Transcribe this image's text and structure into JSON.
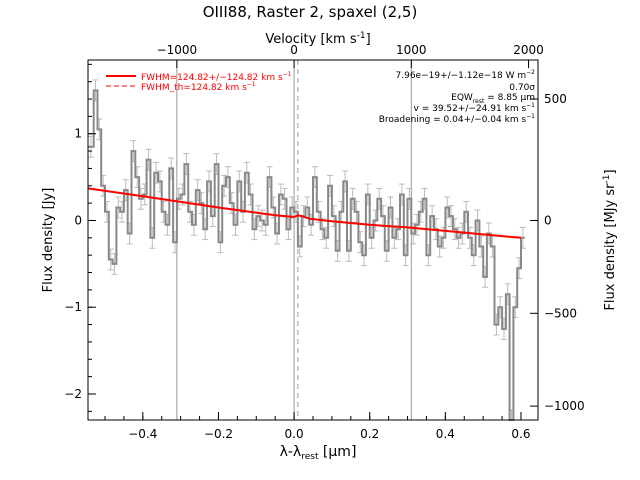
{
  "chart_data": {
    "type": "line",
    "title": "OIII88, Raster 2, spaxel (2,5)",
    "xlabel": "λ-λrest [μm]",
    "xlabel_parts": {
      "lambda": "λ-λ",
      "sub": "rest",
      "unit": " [μm]"
    },
    "x2label": "Velocity [km s⁻¹]",
    "x2label_parts": {
      "text": "Velocity [km s",
      "sup": "-1",
      "end": "]"
    },
    "ylabel": "Flux density [Jy]",
    "y2label": "Flux density [MJy sr⁻¹]",
    "y2label_parts": {
      "text": "Flux density [MJy sr",
      "sup": "-1",
      "end": "]"
    },
    "xlim": [
      -0.545,
      0.645
    ],
    "ylim": [
      -2.3,
      1.85
    ],
    "x_ticks": [
      -0.4,
      -0.2,
      0.0,
      0.2,
      0.4,
      0.6
    ],
    "x_tick_labels": [
      "−0.4",
      "−0.2",
      "0.0",
      "0.2",
      "0.4",
      "0.6"
    ],
    "y_ticks": [
      -2,
      -1,
      0,
      1
    ],
    "y_tick_labels": [
      "−2",
      "−1",
      "0",
      "1"
    ],
    "x2_ticks_um": [
      -0.31,
      0.0,
      0.31,
      0.62
    ],
    "x2_tick_labels": [
      "−1000",
      "0",
      "1000",
      "2000"
    ],
    "y2_ticks_jy": [
      1.4,
      0.0,
      -1.07,
      -2.14
    ],
    "y2_tick_labels": [
      "500",
      "0",
      "−500",
      "−1000"
    ],
    "vertical_lines": [
      -0.31,
      0.0,
      0.31
    ],
    "dashed_line": 0.01,
    "colors": {
      "data": "#888888",
      "errorbar": "#bbbbbb",
      "fit": "#ff0000",
      "guide": "#999999"
    },
    "legend_position": "top-left",
    "legend": [
      {
        "style": "solid",
        "text": "FWHM=124.82+/−124.82 km s",
        "sup": "−1"
      },
      {
        "style": "dashed",
        "text": "FWHM_th=124.82 km s",
        "sup": "−1"
      }
    ],
    "annotation_position": "top-right",
    "annotations": [
      {
        "text": "7.96e−19+/−1.12e−18 W m",
        "sup": "−2",
        "sub": ""
      },
      {
        "text": "0.70σ",
        "sup": "",
        "sub": ""
      },
      {
        "text": "EQW",
        "sub": "rest",
        "tail": " = 8.85 μm",
        "sup": ""
      },
      {
        "text": "v = 39.52+/−24.91 km s",
        "sup": "−1",
        "sub": ""
      },
      {
        "text": "Broadening = 0.04+/−0.04 km s",
        "sup": "−1",
        "sub": ""
      }
    ],
    "series": [
      {
        "name": "spectrum",
        "x": [
          -0.545,
          -0.53,
          -0.52,
          -0.51,
          -0.5,
          -0.49,
          -0.48,
          -0.47,
          -0.46,
          -0.45,
          -0.44,
          -0.43,
          -0.42,
          -0.41,
          -0.4,
          -0.39,
          -0.38,
          -0.37,
          -0.36,
          -0.35,
          -0.34,
          -0.33,
          -0.32,
          -0.31,
          -0.3,
          -0.29,
          -0.28,
          -0.27,
          -0.26,
          -0.25,
          -0.24,
          -0.23,
          -0.22,
          -0.21,
          -0.2,
          -0.19,
          -0.18,
          -0.17,
          -0.16,
          -0.15,
          -0.14,
          -0.13,
          -0.12,
          -0.11,
          -0.1,
          -0.09,
          -0.08,
          -0.07,
          -0.06,
          -0.05,
          -0.04,
          -0.03,
          -0.02,
          -0.01,
          0.0,
          0.01,
          0.02,
          0.03,
          0.04,
          0.05,
          0.06,
          0.07,
          0.08,
          0.09,
          0.1,
          0.11,
          0.12,
          0.13,
          0.14,
          0.15,
          0.16,
          0.17,
          0.18,
          0.19,
          0.2,
          0.21,
          0.22,
          0.23,
          0.24,
          0.25,
          0.26,
          0.27,
          0.28,
          0.29,
          0.3,
          0.31,
          0.32,
          0.33,
          0.34,
          0.35,
          0.36,
          0.37,
          0.38,
          0.39,
          0.4,
          0.41,
          0.42,
          0.43,
          0.44,
          0.45,
          0.46,
          0.47,
          0.48,
          0.49,
          0.5,
          0.51,
          0.52,
          0.53,
          0.54,
          0.55,
          0.56,
          0.57,
          0.58,
          0.59,
          0.6
        ],
        "y": [
          0.85,
          1.5,
          1.05,
          0.4,
          0.1,
          -0.45,
          -0.5,
          0.15,
          0.1,
          0.35,
          -0.15,
          0.8,
          0.5,
          0.25,
          0.3,
          0.7,
          -0.2,
          0.55,
          0.45,
          0.1,
          -0.05,
          0.6,
          -0.25,
          0.25,
          0.3,
          0.65,
          0.1,
          -0.05,
          0.35,
          0.2,
          -0.1,
          0.45,
          0.05,
          0.65,
          -0.25,
          0.4,
          0.5,
          0.2,
          -0.05,
          0.45,
          0.1,
          0.55,
          0.3,
          -0.1,
          0.05,
          0.0,
          -0.05,
          0.5,
          0.15,
          -0.15,
          0.3,
          0.25,
          -0.1,
          0.15,
          0.1,
          -0.3,
          0.05,
          0.15,
          -0.05,
          0.5,
          0.1,
          -0.1,
          -0.2,
          0.4,
          0.05,
          -0.35,
          0.1,
          0.45,
          -0.35,
          0.25,
          0.1,
          -0.25,
          -0.4,
          0.3,
          -0.2,
          0.0,
          0.25,
          0.05,
          -0.35,
          0.15,
          -0.2,
          -0.1,
          0.3,
          -0.4,
          0.25,
          -0.15,
          -0.05,
          0.1,
          0.25,
          -0.4,
          0.05,
          -0.1,
          -0.3,
          -0.2,
          0.15,
          0.05,
          -0.1,
          -0.2,
          -0.15,
          0.1,
          -0.2,
          -0.4,
          0.0,
          -0.3,
          -0.65,
          -0.15,
          -0.3,
          -1.2,
          -1.0,
          -1.25,
          -0.85,
          -2.3,
          -1.0,
          -0.55,
          -0.2
        ]
      },
      {
        "name": "fit",
        "x": [
          -0.545,
          -0.4,
          -0.2,
          -0.05,
          0.0,
          0.01,
          0.02,
          0.04,
          0.1,
          0.2,
          0.3,
          0.4,
          0.5,
          0.6
        ],
        "y": [
          0.37,
          0.28,
          0.15,
          0.06,
          0.04,
          0.06,
          0.05,
          0.02,
          -0.01,
          -0.05,
          -0.08,
          -0.12,
          -0.16,
          -0.2
        ]
      }
    ]
  }
}
